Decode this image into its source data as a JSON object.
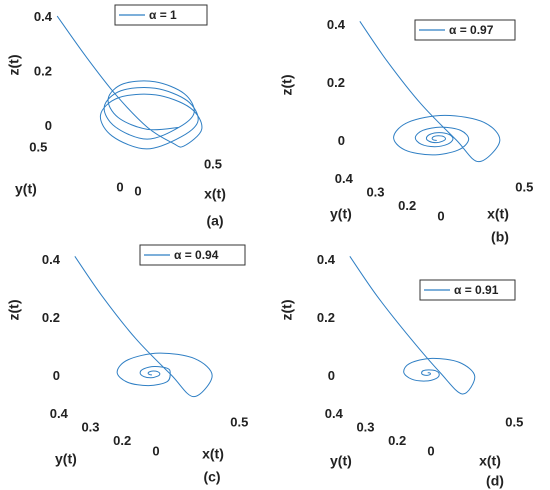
{
  "chart_data": [
    {
      "type": "line3d",
      "caption": "(a)",
      "xlabel": "x(t)",
      "ylabel": "y(t)",
      "zlabel": "z(t)",
      "xlim": [
        0,
        0.7
      ],
      "ylim": [
        0,
        0.6
      ],
      "zlim": [
        -0.02,
        0.42
      ],
      "xticks": [
        0,
        0.5
      ],
      "yticks": [
        0,
        0.5
      ],
      "zticks": [
        0,
        0.2,
        0.4
      ],
      "series": [
        {
          "name": "α = 1",
          "color": "#2f7fc4",
          "x": [
            0.1,
            0.15,
            0.22,
            0.3,
            0.36,
            0.4,
            0.584,
            0.66,
            0.584,
            0.4,
            0.216,
            0.14,
            0.216,
            0.4,
            0.57,
            0.64,
            0.57,
            0.4,
            0.23,
            0.16,
            0.23,
            0.4,
            0.556,
            0.62,
            0.556,
            0.4,
            0.244,
            0.18,
            0.244,
            0.4
          ],
          "y": [
            0.55,
            0.42,
            0.3,
            0.18,
            0.08,
            0.05,
            0.109,
            0.25,
            0.391,
            0.45,
            0.391,
            0.25,
            0.109,
            0.065,
            0.119,
            0.25,
            0.381,
            0.435,
            0.381,
            0.25,
            0.119,
            0.08,
            0.13,
            0.25,
            0.37,
            0.42,
            0.37,
            0.25,
            0.13,
            0.08
          ],
          "z": [
            0.4,
            0.28,
            0.16,
            0.06,
            0.02,
            0.01,
            0.019,
            0.04,
            0.061,
            0.07,
            0.061,
            0.04,
            0.019,
            0.04,
            0.049,
            0.07,
            0.091,
            0.1,
            0.091,
            0.07,
            0.049,
            0.07,
            0.079,
            0.1,
            0.121,
            0.13,
            0.121,
            0.1,
            0.079,
            0.07
          ]
        }
      ]
    },
    {
      "type": "line3d",
      "caption": "(b)",
      "xlabel": "x(t)",
      "ylabel": "y(t)",
      "zlabel": "z(t)",
      "xlim": [
        0,
        0.6
      ],
      "ylim": [
        0.15,
        0.45
      ],
      "zlim": [
        -0.08,
        0.42
      ],
      "xticks": [
        0,
        0.5
      ],
      "yticks": [
        0.2,
        0.3,
        0.4
      ],
      "zticks": [
        0,
        0.2,
        0.4
      ],
      "series": [
        {
          "name": "α = 0.97",
          "color": "#2f7fc4",
          "x": [
            0.1,
            0.15,
            0.2,
            0.26,
            0.3,
            0.514,
            0.578,
            0.48,
            0.3,
            0.149,
            0.104,
            0.173,
            0.3,
            0.407,
            0.439,
            0.39,
            0.3,
            0.224,
            0.202,
            0.236,
            0.3,
            0.353,
            0.369,
            0.345,
            0.3,
            0.262,
            0.251,
            0.268,
            0.3,
            0.327,
            0.335,
            0.322,
            0.3,
            0.281,
            0.276,
            0.284
          ],
          "y": [
            0.44,
            0.38,
            0.3,
            0.22,
            0.17,
            0.216,
            0.3,
            0.371,
            0.392,
            0.359,
            0.3,
            0.25,
            0.235,
            0.258,
            0.3,
            0.335,
            0.346,
            0.33,
            0.3,
            0.275,
            0.268,
            0.279,
            0.3,
            0.318,
            0.323,
            0.315,
            0.3,
            0.287,
            0.284,
            0.289,
            0.3,
            0.309,
            0.311,
            0.307,
            0.3,
            0.294
          ],
          "z": [
            0.4,
            0.28,
            0.16,
            0.06,
            0,
            0.007,
            0.02,
            0.031,
            0.034,
            0.029,
            0.02,
            0.012,
            0.01,
            0.014,
            0.02,
            0.025,
            0.027,
            0.025,
            0.02,
            0.016,
            0.015,
            0.017,
            0.02,
            0.023,
            0.024,
            0.022,
            0.02,
            0.018,
            0.018,
            0.018,
            0.02,
            0.021,
            0.022,
            0.021,
            0.02,
            0.019
          ]
        }
      ]
    },
    {
      "type": "line3d",
      "caption": "(c)",
      "xlabel": "x(t)",
      "ylabel": "y(t)",
      "zlabel": "z(t)",
      "xlim": [
        0,
        0.6
      ],
      "ylim": [
        0.15,
        0.45
      ],
      "zlim": [
        -0.08,
        0.42
      ],
      "xticks": [
        0,
        0.5
      ],
      "yticks": [
        0.2,
        0.3,
        0.4
      ],
      "zticks": [
        0,
        0.2,
        0.4
      ],
      "series": [
        {
          "name": "α = 0.94",
          "color": "#2f7fc4",
          "x": [
            0.1,
            0.15,
            0.2,
            0.26,
            0.3,
            0.504,
            0.554,
            0.458,
            0.3,
            0.179,
            0.15,
            0.207,
            0.3,
            0.372,
            0.389,
            0.355,
            0.3,
            0.258,
            0.248,
            0.267,
            0.3,
            0.325,
            0.331,
            0.319,
            0.3,
            0.285,
            0.282,
            0.289
          ],
          "y": [
            0.44,
            0.38,
            0.3,
            0.22,
            0.17,
            0.219,
            0.3,
            0.362,
            0.377,
            0.348,
            0.3,
            0.263,
            0.254,
            0.282,
            0.3,
            0.322,
            0.327,
            0.317,
            0.3,
            0.287,
            0.284,
            0.29,
            0.3,
            0.308,
            0.31,
            0.306,
            0.3,
            0.296
          ],
          "z": [
            0.4,
            0.28,
            0.16,
            0.06,
            0,
            0.008,
            0.02,
            0.03,
            0.032,
            0.027,
            0.02,
            0.014,
            0.013,
            0.016,
            0.02,
            0.023,
            0.024,
            0.023,
            0.02,
            0.018,
            0.018,
            0.018,
            0.02,
            0.021,
            0.021,
            0.021,
            0.02,
            0.019
          ]
        }
      ]
    },
    {
      "type": "line3d",
      "caption": "(d)",
      "xlabel": "x(t)",
      "ylabel": "y(t)",
      "zlabel": "z(t)",
      "xlim": [
        0,
        0.6
      ],
      "ylim": [
        0.15,
        0.45
      ],
      "zlim": [
        -0.08,
        0.42
      ],
      "xticks": [
        0,
        0.5
      ],
      "yticks": [
        0.2,
        0.3,
        0.4
      ],
      "zticks": [
        0,
        0.2,
        0.4
      ],
      "series": [
        {
          "name": "α = 0.91",
          "color": "#2f7fc4",
          "x": [
            0.1,
            0.15,
            0.2,
            0.26,
            0.3,
            0.46,
            0.491,
            0.414,
            0.3,
            0.22,
            0.204,
            0.243,
            0.3,
            0.34,
            0.348,
            0.328,
            0.3,
            0.28,
            0.276,
            0.286,
            0.3,
            0.31,
            0.312,
            0.307
          ],
          "y": [
            0.44,
            0.38,
            0.3,
            0.24,
            0.19,
            0.235,
            0.3,
            0.346,
            0.355,
            0.333,
            0.3,
            0.277,
            0.273,
            0.284,
            0.3,
            0.311,
            0.314,
            0.308,
            0.3,
            0.294,
            0.293,
            0.296,
            0.3,
            0.303
          ],
          "z": [
            0.4,
            0.28,
            0.16,
            0.06,
            0,
            0.008,
            0.02,
            0.028,
            0.03,
            0.026,
            0.02,
            0.016,
            0.015,
            0.017,
            0.02,
            0.022,
            0.023,
            0.021,
            0.02,
            0.019,
            0.019,
            0.019,
            0.02,
            0.02
          ]
        }
      ]
    }
  ]
}
